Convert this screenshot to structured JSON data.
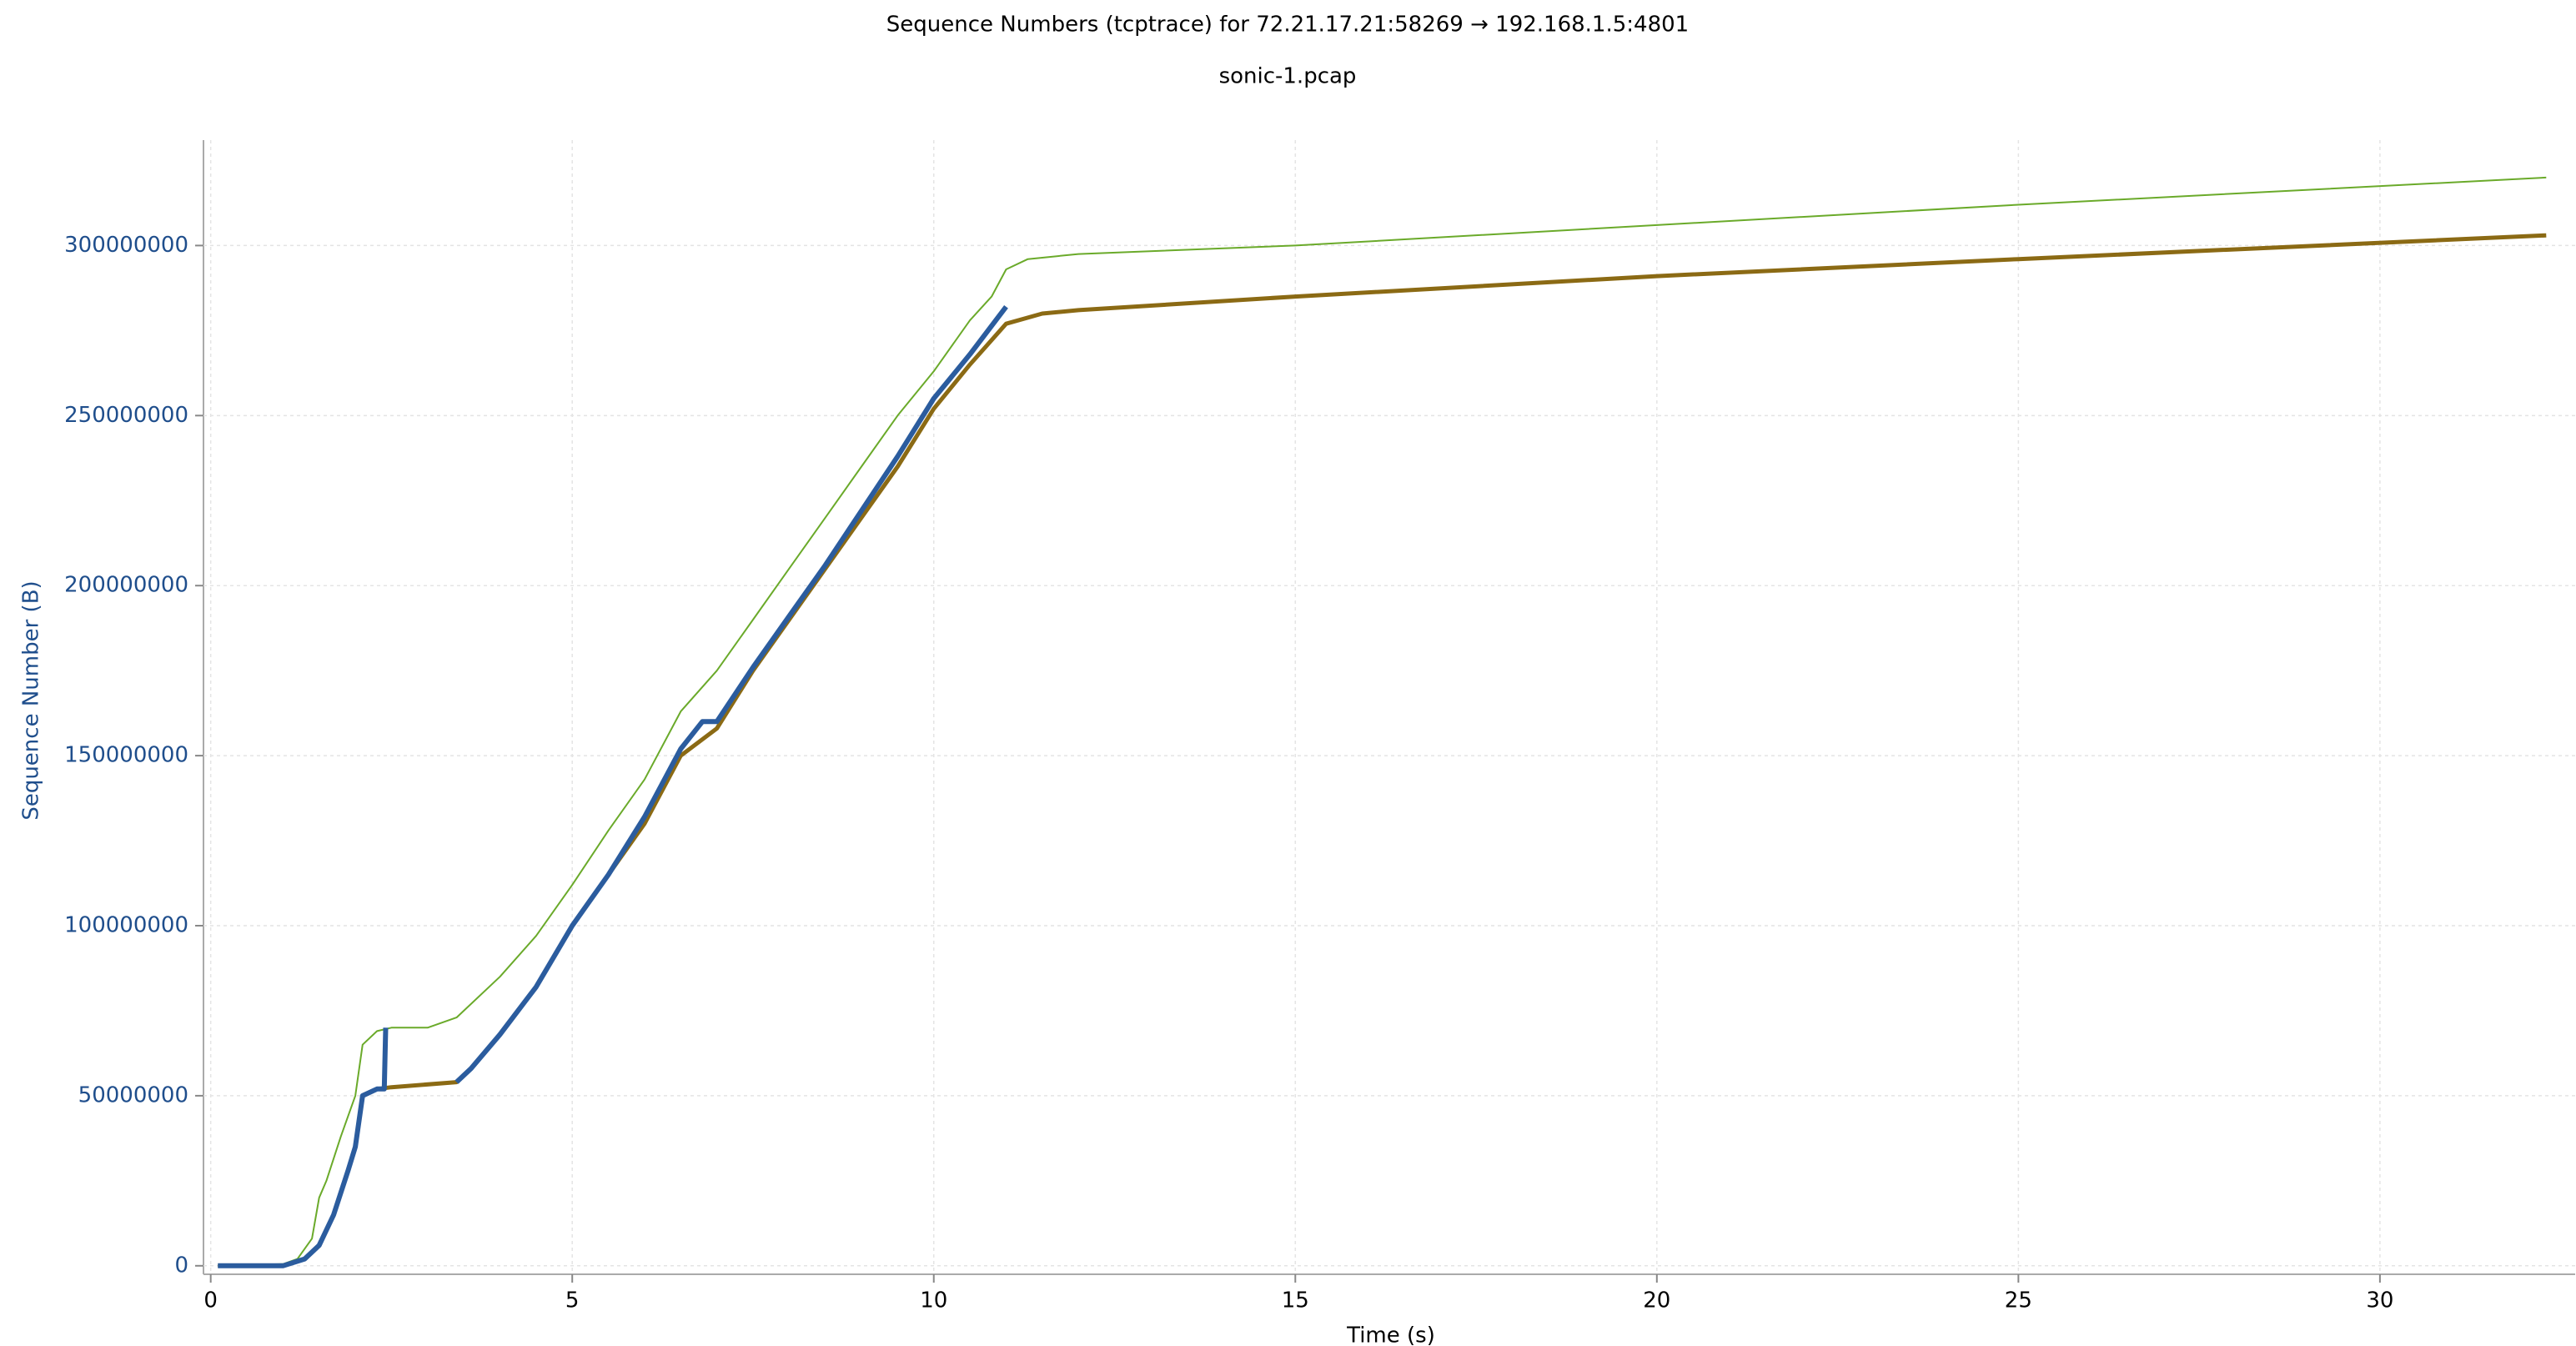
{
  "chart_data": {
    "type": "line",
    "title": "Sequence Numbers (tcptrace) for 72.21.17.21:58269 → 192.168.1.5:4801",
    "subtitle": "sonic-1.pcap",
    "x_label": "Time (s)",
    "y_label": "Sequence Number (B)",
    "xlim": [
      -0.1,
      32.7
    ],
    "ylim": [
      -2500000,
      331000000
    ],
    "xticks": [
      0,
      5,
      10,
      15,
      20,
      25,
      30
    ],
    "yticks": [
      0,
      50000000,
      100000000,
      150000000,
      200000000,
      250000000,
      300000000
    ],
    "grid": true,
    "series": [
      {
        "color": "#6aaa2a",
        "width": 2,
        "x": [
          0.1,
          1.0,
          1.2,
          1.4,
          1.5,
          1.6,
          1.8,
          2.0,
          2.1,
          2.3,
          2.5,
          3.0,
          3.4,
          4.0,
          4.5,
          5.0,
          5.5,
          6.0,
          6.5,
          7.0,
          7.5,
          8.0,
          8.5,
          9.0,
          9.5,
          10.0,
          10.5,
          10.8,
          11.0,
          11.3,
          12,
          15,
          20,
          25,
          32.3
        ],
        "values": [
          0,
          500000,
          2000000,
          8000000,
          20000000,
          25000000,
          38000000,
          50000000,
          65000000,
          69000000,
          70000000,
          70000000,
          73000000,
          85000000,
          97000000,
          112000000,
          128000000,
          143000000,
          163000000,
          175000000,
          190000000,
          205000000,
          220000000,
          235000000,
          250000000,
          263000000,
          278000000,
          285000000,
          293000000,
          296000000,
          297500000,
          300000000,
          306000000,
          312000000,
          320000000
        ]
      },
      {
        "color": "#8b6a14",
        "width": 5,
        "x": [
          0.1,
          1.0,
          1.3,
          1.5,
          1.7,
          1.9,
          2.0,
          2.1,
          2.3,
          2.5,
          3.4,
          3.6,
          4.0,
          4.5,
          5.0,
          5.5,
          6.0,
          6.5,
          7.0,
          7.5,
          8.0,
          8.5,
          9.0,
          9.5,
          10.0,
          10.5,
          11.0,
          11.5,
          12,
          15,
          20,
          25,
          32.3
        ],
        "values": [
          0,
          0,
          2000000,
          6000000,
          15000000,
          28000000,
          35000000,
          50000000,
          52000000,
          52500000,
          54000000,
          58000000,
          68000000,
          82000000,
          100000000,
          115000000,
          130000000,
          150000000,
          158000000,
          175000000,
          190000000,
          205000000,
          220000000,
          235000000,
          252000000,
          265000000,
          277000000,
          280000000,
          281000000,
          285000000,
          291000000,
          296000000,
          303000000
        ]
      },
      {
        "color": "#2b5c9e",
        "width": 6,
        "x": [
          0.1,
          1.0,
          1.3,
          1.5,
          1.7,
          1.9,
          2.0,
          2.1,
          2.3,
          2.4,
          2.42,
          3.0,
          3.4,
          3.6,
          4.0,
          4.5,
          5.0,
          5.5,
          6.0,
          6.5,
          6.8,
          7.0,
          7.5,
          8.0,
          8.5,
          9.0,
          9.5,
          10.0,
          10.5,
          11.0
        ],
        "values": [
          0,
          0,
          2000000,
          6000000,
          15000000,
          28000000,
          35000000,
          50000000,
          52000000,
          52000000,
          70000000,
          null,
          54000000,
          58000000,
          68000000,
          82000000,
          100000000,
          115000000,
          132000000,
          152000000,
          160000000,
          160000000,
          176000000,
          191000000,
          206000000,
          222000000,
          238000000,
          255000000,
          268000000,
          282000000
        ]
      }
    ]
  }
}
